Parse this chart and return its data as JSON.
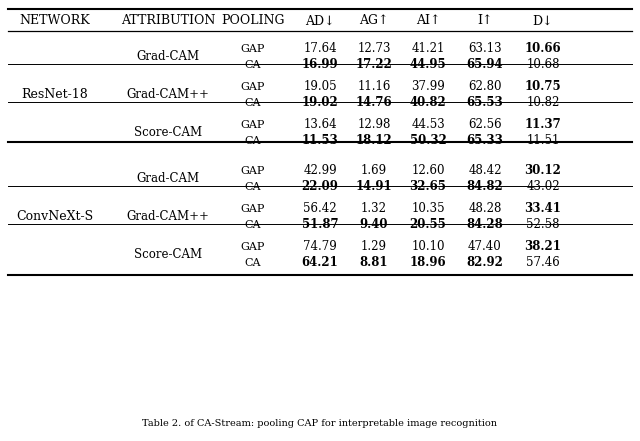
{
  "header_sc": [
    "Network",
    "Attribution",
    "Pooling"
  ],
  "header_metrics": [
    "AD↓",
    "AG↑",
    "AI↑",
    "I↑",
    "D↓"
  ],
  "networks": [
    "ResNet-18",
    "ConvNeXt-S"
  ],
  "network_sc": [
    "ResNet-18",
    "ConvNeXt-S"
  ],
  "attributions": [
    "Grad-CAM",
    "Grad-CAM++",
    "Score-CAM"
  ],
  "rows": [
    {
      "pooling": "GAP",
      "vals": [
        "17.64",
        "12.73",
        "41.21",
        "63.13",
        "10.66"
      ],
      "bold": [
        false,
        false,
        false,
        false,
        true
      ]
    },
    {
      "pooling": "CA",
      "vals": [
        "16.99",
        "17.22",
        "44.95",
        "65.94",
        "10.68"
      ],
      "bold": [
        true,
        true,
        true,
        true,
        false
      ]
    },
    {
      "pooling": "GAP",
      "vals": [
        "19.05",
        "11.16",
        "37.99",
        "62.80",
        "10.75"
      ],
      "bold": [
        false,
        false,
        false,
        false,
        true
      ]
    },
    {
      "pooling": "CA",
      "vals": [
        "19.02",
        "14.76",
        "40.82",
        "65.53",
        "10.82"
      ],
      "bold": [
        true,
        true,
        true,
        true,
        false
      ]
    },
    {
      "pooling": "GAP",
      "vals": [
        "13.64",
        "12.98",
        "44.53",
        "62.56",
        "11.37"
      ],
      "bold": [
        false,
        false,
        false,
        false,
        true
      ]
    },
    {
      "pooling": "CA",
      "vals": [
        "11.53",
        "18.12",
        "50.32",
        "65.33",
        "11.51"
      ],
      "bold": [
        true,
        true,
        true,
        true,
        false
      ]
    },
    {
      "pooling": "GAP",
      "vals": [
        "42.99",
        "1.69",
        "12.60",
        "48.42",
        "30.12"
      ],
      "bold": [
        false,
        false,
        false,
        false,
        true
      ]
    },
    {
      "pooling": "CA",
      "vals": [
        "22.09",
        "14.91",
        "32.65",
        "84.82",
        "43.02"
      ],
      "bold": [
        true,
        true,
        true,
        true,
        false
      ]
    },
    {
      "pooling": "GAP",
      "vals": [
        "56.42",
        "1.32",
        "10.35",
        "48.28",
        "33.41"
      ],
      "bold": [
        false,
        false,
        false,
        false,
        true
      ]
    },
    {
      "pooling": "CA",
      "vals": [
        "51.87",
        "9.40",
        "20.55",
        "84.28",
        "52.58"
      ],
      "bold": [
        true,
        true,
        true,
        true,
        false
      ]
    },
    {
      "pooling": "GAP",
      "vals": [
        "74.79",
        "1.29",
        "10.10",
        "47.40",
        "38.21"
      ],
      "bold": [
        false,
        false,
        false,
        false,
        true
      ]
    },
    {
      "pooling": "CA",
      "vals": [
        "64.21",
        "8.81",
        "18.96",
        "82.92",
        "57.46"
      ],
      "bold": [
        true,
        true,
        true,
        true,
        false
      ]
    }
  ],
  "caption": "Table 2. of CA-Stream: pooling CAP for interpretable image recognition",
  "bg_color": "#ffffff"
}
